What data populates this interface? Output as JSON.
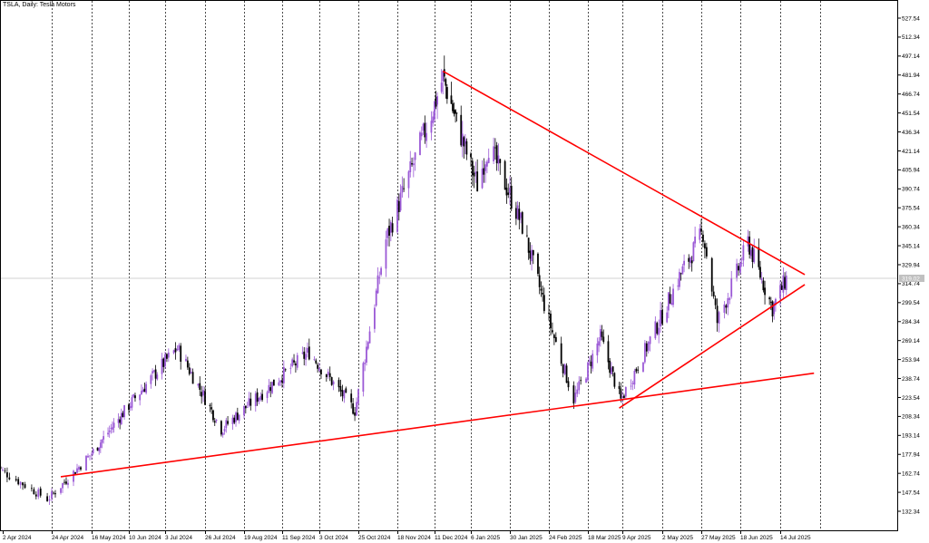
{
  "chart_data": {
    "type": "candlestick",
    "title": "TSLA, Daily:  Tesla Motors",
    "current_price_label": "319.02",
    "current_price": 319.02,
    "ylim": [
      125.0,
      535.0
    ],
    "y_ticks": [
      "527.54",
      "512.34",
      "497.14",
      "481.94",
      "466.74",
      "451.54",
      "436.34",
      "421.14",
      "405.94",
      "390.74",
      "375.54",
      "360.34",
      "345.14",
      "329.94",
      "314.74",
      "299.54",
      "284.34",
      "269.14",
      "253.94",
      "238.74",
      "223.54",
      "208.34",
      "193.14",
      "177.94",
      "162.74",
      "147.54",
      "132.34"
    ],
    "x_ticks": [
      "2 Apr 2024",
      "24 Apr 2024",
      "16 May 2024",
      "10 Jun 2024",
      "3 Jul 2024",
      "26 Jul 2024",
      "19 Aug 2024",
      "11 Sep 2024",
      "3 Oct 2024",
      "25 Oct 2024",
      "18 Nov 2024",
      "11 Dec 2024",
      "6 Jan 2025",
      "30 Jan 2025",
      "24 Feb 2025",
      "18 Mar 2025",
      "9 Apr 2025",
      "2 May 2025",
      "27 May 2025",
      "18 Jun 2025",
      "14 Jul 2025"
    ],
    "key_prices": [
      {
        "date": "2024-04-22",
        "close": 142.0
      },
      {
        "date": "2024-07-10",
        "close": 263.0
      },
      {
        "date": "2024-08-05",
        "close": 198.0
      },
      {
        "date": "2024-09-27",
        "close": 260.0
      },
      {
        "date": "2024-10-23",
        "close": 213.0
      },
      {
        "date": "2024-11-11",
        "close": 350.0
      },
      {
        "date": "2024-12-17",
        "close": 480.0
      },
      {
        "date": "2025-01-10",
        "close": 394.0
      },
      {
        "date": "2025-01-17",
        "close": 426.0
      },
      {
        "date": "2025-02-07",
        "close": 361.0
      },
      {
        "date": "2025-03-10",
        "close": 222.0
      },
      {
        "date": "2025-03-26",
        "close": 272.0
      },
      {
        "date": "2025-04-08",
        "close": 221.0
      },
      {
        "date": "2025-05-12",
        "close": 318.0
      },
      {
        "date": "2025-05-28",
        "close": 356.0
      },
      {
        "date": "2025-06-05",
        "close": 284.0
      },
      {
        "date": "2025-06-23",
        "close": 348.0
      },
      {
        "date": "2025-07-09",
        "close": 295.0
      },
      {
        "date": "2025-07-18",
        "close": 319.0
      }
    ],
    "trendlines": [
      {
        "name": "",
        "color": "#ff0000",
        "from": {
          "date": "2024-12-17",
          "price": 485.0
        },
        "to": {
          "date": "2025-07-30",
          "price": 322.0
        }
      },
      {
        "name": "",
        "color": "#ff0000",
        "from": {
          "date": "2025-04-07",
          "price": 215.0
        },
        "to": {
          "date": "2025-07-30",
          "price": 314.0
        }
      },
      {
        "name": "",
        "color": "#ff0000",
        "from": {
          "date": "2024-04-29",
          "price": 160.0
        },
        "to": {
          "date": "2025-08-05",
          "price": 243.0
        }
      }
    ],
    "grid": true,
    "colors": {
      "bull": "#9b59d6",
      "bear": "#000000",
      "trendline": "#ff0000",
      "grid": "#000000",
      "price_label_bg": "#c0c0c0"
    }
  }
}
